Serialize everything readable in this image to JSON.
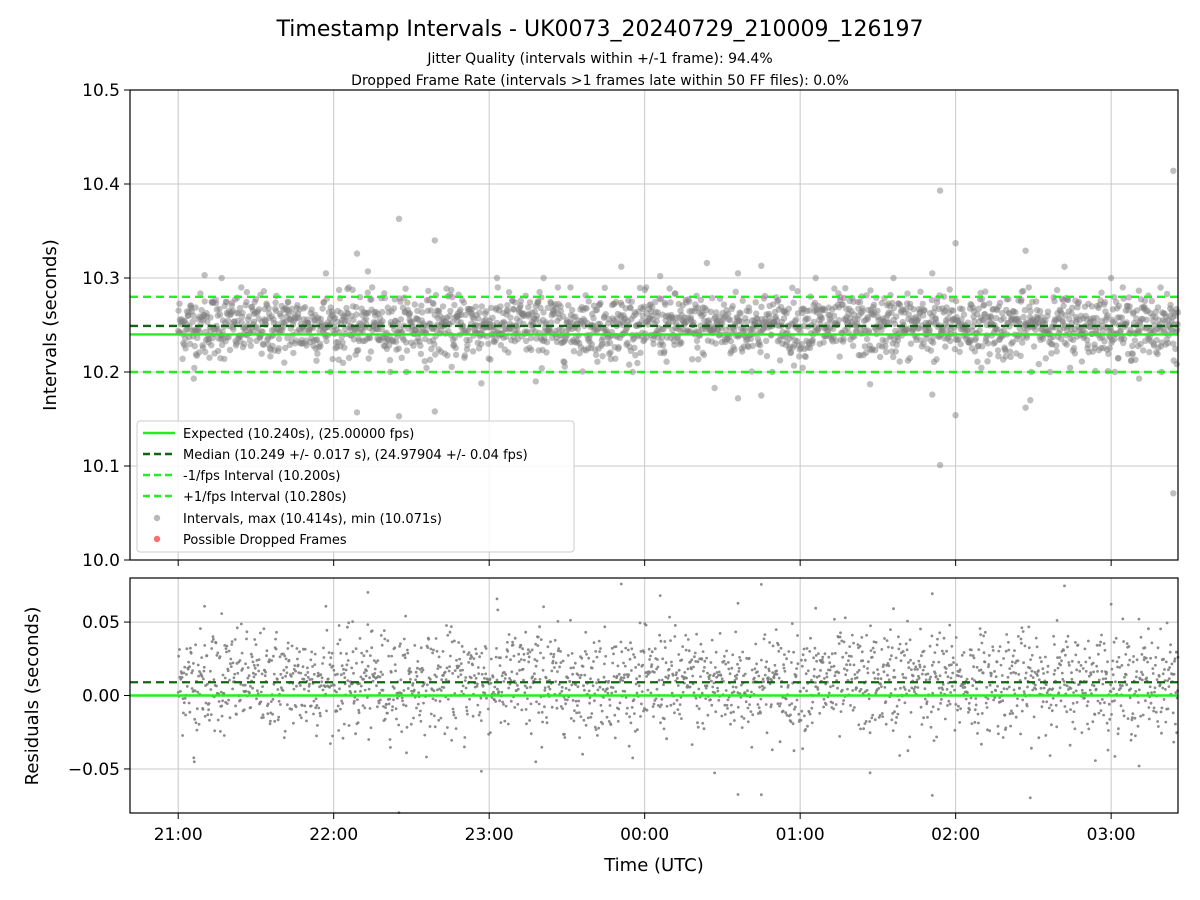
{
  "title": "Timestamp Intervals - UK0073_20240729_210009_126197",
  "subtitle_lines": [
    "Jitter Quality (intervals within +/-1 frame): 94.4%",
    "Dropped Frame Rate (intervals >1 frames late within 50 FF files): 0.0%"
  ],
  "colors": {
    "expected": "#22ee22",
    "median": "#116611",
    "interval_band": "#22ee22",
    "points": "#808080",
    "dropped": "#ff5555",
    "grid": "#c8c8c8"
  },
  "chart_data": [
    {
      "type": "scatter",
      "panel": "top",
      "ylabel": "Intervals (seconds)",
      "ylim": [
        10.0,
        10.5
      ],
      "yticks": [
        "10.0",
        "10.1",
        "10.2",
        "10.3",
        "10.4",
        "10.5"
      ],
      "ytick_values": [
        10.0,
        10.1,
        10.2,
        10.3,
        10.4,
        10.5
      ],
      "xlim_hours": [
        20.69,
        27.43
      ],
      "grid": true,
      "legend_position": "lower-left",
      "reference_lines": {
        "expected": 10.24,
        "median": 10.249,
        "minus_one_frame": 10.2,
        "plus_one_frame": 10.28
      },
      "series": [
        {
          "name": "Expected (10.240s), (25.00000 fps)",
          "kind": "line",
          "style": "solid",
          "color_key": "expected"
        },
        {
          "name": "Median (10.249 +/- 0.017 s), (24.97904 +/- 0.04 fps)",
          "kind": "line",
          "style": "dashed",
          "color_key": "median"
        },
        {
          "name": "-1/fps Interval (10.200s)",
          "kind": "line",
          "style": "dashed",
          "color_key": "interval_band"
        },
        {
          "name": "+1/fps Interval (10.280s)",
          "kind": "line",
          "style": "dashed",
          "color_key": "interval_band"
        },
        {
          "name": "Intervals, max (10.414s), min (10.071s)",
          "kind": "scatter",
          "color_key": "points",
          "count": 2300,
          "center": 10.249,
          "std": 0.017,
          "max": 10.414,
          "min": 10.071
        },
        {
          "name": "Possible Dropped Frames",
          "kind": "scatter",
          "color_key": "dropped",
          "count": 0
        }
      ],
      "outliers": [
        {
          "t": 21.17,
          "v": 10.303
        },
        {
          "t": 21.28,
          "v": 10.3
        },
        {
          "t": 21.95,
          "v": 10.305
        },
        {
          "t": 22.15,
          "v": 10.326
        },
        {
          "t": 22.22,
          "v": 10.307
        },
        {
          "t": 22.42,
          "v": 10.363
        },
        {
          "t": 22.65,
          "v": 10.34
        },
        {
          "t": 23.05,
          "v": 10.3
        },
        {
          "t": 23.35,
          "v": 10.3
        },
        {
          "t": 23.85,
          "v": 10.312
        },
        {
          "t": 24.1,
          "v": 10.302
        },
        {
          "t": 24.4,
          "v": 10.316
        },
        {
          "t": 24.6,
          "v": 10.305
        },
        {
          "t": 24.75,
          "v": 10.313
        },
        {
          "t": 25.1,
          "v": 10.3
        },
        {
          "t": 25.6,
          "v": 10.3
        },
        {
          "t": 25.85,
          "v": 10.305
        },
        {
          "t": 25.9,
          "v": 10.393
        },
        {
          "t": 26.0,
          "v": 10.337
        },
        {
          "t": 26.45,
          "v": 10.329
        },
        {
          "t": 26.7,
          "v": 10.312
        },
        {
          "t": 27.0,
          "v": 10.3
        },
        {
          "t": 27.4,
          "v": 10.414
        },
        {
          "t": 21.1,
          "v": 10.193
        },
        {
          "t": 22.15,
          "v": 10.157
        },
        {
          "t": 22.42,
          "v": 10.153
        },
        {
          "t": 22.65,
          "v": 10.158
        },
        {
          "t": 22.95,
          "v": 10.188
        },
        {
          "t": 23.3,
          "v": 10.19
        },
        {
          "t": 24.45,
          "v": 10.183
        },
        {
          "t": 24.6,
          "v": 10.172
        },
        {
          "t": 24.75,
          "v": 10.175
        },
        {
          "t": 25.45,
          "v": 10.187
        },
        {
          "t": 25.85,
          "v": 10.176
        },
        {
          "t": 25.9,
          "v": 10.101
        },
        {
          "t": 26.0,
          "v": 10.154
        },
        {
          "t": 26.45,
          "v": 10.162
        },
        {
          "t": 26.48,
          "v": 10.17
        },
        {
          "t": 27.18,
          "v": 10.193
        },
        {
          "t": 27.4,
          "v": 10.071
        }
      ]
    },
    {
      "type": "scatter",
      "panel": "bottom",
      "xlabel": "Time (UTC)",
      "ylabel": "Residuals (seconds)",
      "ylim": [
        -0.08,
        0.08
      ],
      "yticks": [
        "−0.05",
        "0.00",
        "0.05"
      ],
      "ytick_values": [
        -0.05,
        0.0,
        0.05
      ],
      "xticks": [
        "21:00",
        "22:00",
        "23:00",
        "00:00",
        "01:00",
        "02:00",
        "03:00"
      ],
      "xtick_hours": [
        21,
        22,
        23,
        24,
        25,
        26,
        27
      ],
      "grid": true,
      "reference_lines": {
        "expected": 0.0,
        "median": 0.009
      },
      "residual_std": 0.02,
      "residual_center": 0.009
    }
  ]
}
